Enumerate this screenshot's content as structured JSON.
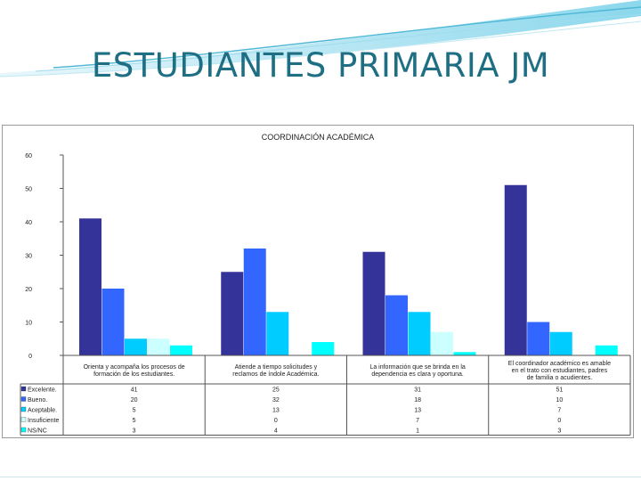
{
  "slide": {
    "title": "ESTUDIANTES PRIMARIA JM"
  },
  "chart_data": {
    "type": "bar",
    "title": "COORDINACIÓN ACADÉMICA",
    "ylim": [
      0,
      60
    ],
    "yticks": [
      "0",
      "10",
      "20",
      "30",
      "40",
      "50",
      "60"
    ],
    "grid": false,
    "legend": "bottom-left",
    "categories": [
      "Orienta y acompaña los procesos de formación de los estudiantes.",
      "Atiende a tiempo solicitudes y reclamos de índole Académica.",
      "La información que se brinda en la dependencia es clara y oportuna.",
      "El coordinador académico es amable en el trato con estudiantes, padres de familia o acudientes."
    ],
    "series": [
      {
        "name": "Excelente.",
        "color": "#333399",
        "values": [
          41,
          25,
          31,
          51
        ]
      },
      {
        "name": "Bueno.",
        "color": "#3366ff",
        "values": [
          20,
          32,
          18,
          10
        ]
      },
      {
        "name": "Aceptable.",
        "color": "#00ccff",
        "values": [
          5,
          13,
          13,
          7
        ]
      },
      {
        "name": "Insuficiente",
        "color": "#ccffff",
        "values": [
          5,
          0,
          7,
          0
        ]
      },
      {
        "name": "NS/NC",
        "color": "#00ffff",
        "values": [
          3,
          4,
          1,
          3
        ]
      }
    ]
  }
}
